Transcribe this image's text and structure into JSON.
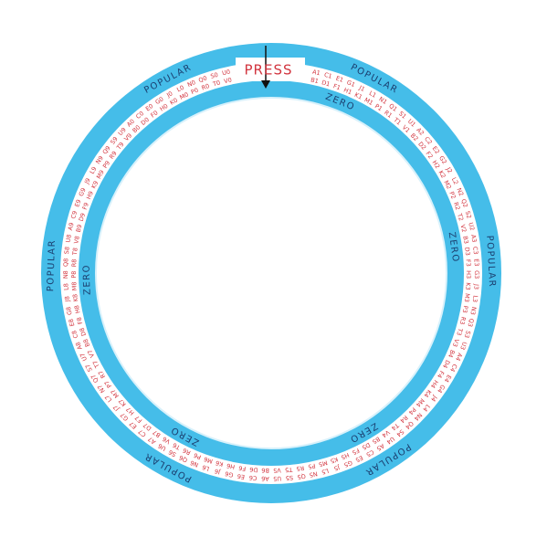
{
  "press": "PRESS",
  "popular": [
    "POPULAR",
    "POPULAR",
    "POPULAR",
    "POPULAR",
    "POPULAR",
    "POPULAR"
  ],
  "zero": [
    "ZERO",
    "ZERO",
    "ZERO",
    "ZERO",
    "ZERO"
  ],
  "codes": {
    "outer": [
      "A1",
      "C1",
      "E1",
      "G1",
      "J1",
      "L1",
      "N1",
      "Q1",
      "S1",
      "U1",
      "A2",
      "C2",
      "E2",
      "G2",
      "J2",
      "L2",
      "N2",
      "Q2",
      "S2",
      "U2",
      "A3",
      "C3",
      "E3",
      "G3",
      "J3",
      "L3",
      "N3",
      "Q3",
      "S3",
      "U3",
      "A4",
      "C4",
      "E4",
      "G4",
      "J4",
      "L4",
      "N4",
      "Q4",
      "S4",
      "U4",
      "A5",
      "C5",
      "E5",
      "G5",
      "J5",
      "L5",
      "N5",
      "Q5",
      "S5",
      "U5",
      "A6",
      "C6",
      "E6",
      "G6",
      "J6",
      "L6",
      "N6",
      "Q6",
      "S6",
      "U6",
      "A7",
      "C7",
      "E7",
      "G7",
      "J7",
      "L7",
      "N7",
      "Q7",
      "S7",
      "U7",
      "A8",
      "C8",
      "E8",
      "G8",
      "J8",
      "L8",
      "N8",
      "Q8",
      "S8",
      "U8",
      "A9",
      "C9",
      "E9",
      "G9",
      "J9",
      "L9",
      "N9",
      "Q9",
      "S9",
      "U9",
      "A0",
      "C0",
      "E0",
      "G0",
      "J0",
      "L0",
      "N0",
      "Q0",
      "S0",
      "U0"
    ],
    "inner": [
      "B1",
      "D1",
      "F1",
      "H1",
      "K1",
      "M1",
      "P1",
      "R1",
      "T1",
      "V1",
      "B2",
      "D2",
      "F2",
      "H2",
      "K2",
      "M2",
      "P2",
      "R2",
      "T2",
      "V2",
      "B3",
      "D3",
      "F3",
      "H3",
      "K3",
      "M3",
      "P3",
      "R3",
      "T3",
      "V3",
      "B4",
      "D4",
      "F4",
      "H4",
      "K4",
      "M4",
      "P4",
      "R4",
      "T4",
      "V4",
      "B5",
      "D5",
      "F5",
      "H5",
      "K5",
      "M5",
      "P5",
      "R5",
      "T5",
      "V5",
      "B6",
      "D6",
      "F6",
      "H6",
      "K6",
      "M6",
      "P6",
      "R6",
      "T6",
      "V6",
      "B7",
      "D7",
      "F7",
      "H7",
      "K7",
      "M7",
      "P7",
      "R7",
      "T7",
      "V7",
      "B8",
      "D8",
      "F8",
      "H8",
      "K8",
      "M8",
      "P8",
      "R8",
      "T8",
      "V8",
      "B9",
      "D9",
      "F9",
      "H9",
      "K9",
      "M9",
      "P9",
      "R9",
      "T9",
      "V9",
      "B0",
      "D0",
      "F0",
      "H0",
      "K0",
      "M0",
      "P0",
      "R0",
      "T0",
      "V0"
    ]
  }
}
